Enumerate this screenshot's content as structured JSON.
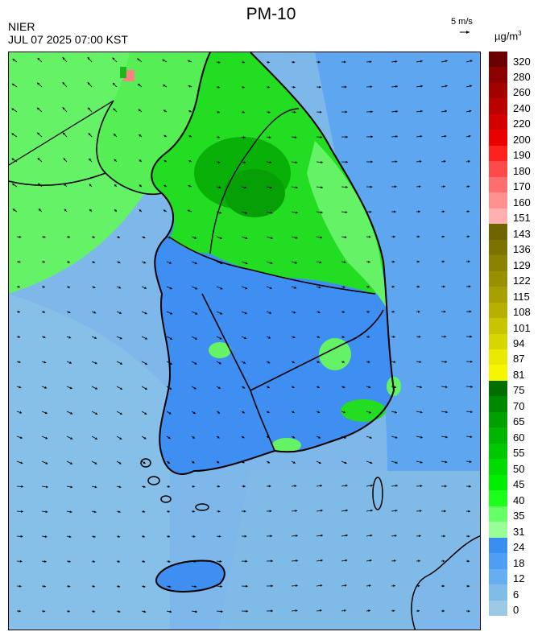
{
  "header": {
    "title": "PM-10",
    "agency": "NIER",
    "datetime": "JUL 07 2025 07:00 KST",
    "ref_vector_label": "5 m/s",
    "unit_base": "µg/m",
    "unit_exp": "3"
  },
  "colorbar": {
    "labels": [
      "320",
      "280",
      "260",
      "240",
      "220",
      "200",
      "190",
      "180",
      "170",
      "160",
      "151",
      "143",
      "136",
      "129",
      "122",
      "115",
      "108",
      "101",
      "94",
      "87",
      "81",
      "75",
      "70",
      "65",
      "60",
      "55",
      "50",
      "45",
      "40",
      "35",
      "31",
      "24",
      "18",
      "12",
      "6",
      "0"
    ],
    "colors": [
      "#6b0000",
      "#8b0000",
      "#a30000",
      "#bb0000",
      "#d30000",
      "#eb0000",
      "#ff2020",
      "#ff4a4a",
      "#ff6e6e",
      "#ff9090",
      "#ffb0b0",
      "#6e6400",
      "#7c7200",
      "#8a8200",
      "#989000",
      "#a8a000",
      "#b8b000",
      "#c8c400",
      "#d8d600",
      "#eaea00",
      "#f6f600",
      "#006e00",
      "#008800",
      "#00a000",
      "#00b400",
      "#00c800",
      "#00dc00",
      "#00ee00",
      "#1cff1c",
      "#66ff66",
      "#98ff98",
      "#3a8ef0",
      "#4f9ef4",
      "#66aef0",
      "#80bce8",
      "#9ccae6"
    ]
  },
  "map": {
    "region": "Korean Peninsula (South Korea)",
    "colors": {
      "sea_low": "#7eb8ea",
      "sea_mid": "#66aaf0",
      "land_blue": "#3f8ef2",
      "land_green_light": "#66f266",
      "land_green": "#22dd22",
      "land_green_dark": "#08b008",
      "hotspot": "#ff8080",
      "coast": "#000000"
    }
  }
}
